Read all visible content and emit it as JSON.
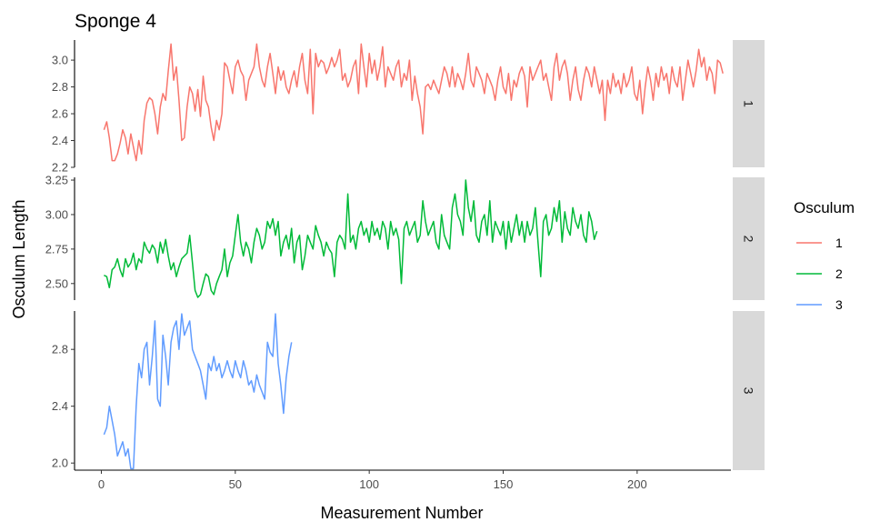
{
  "chart_data": {
    "type": "line",
    "title": "Sponge 4",
    "xlabel": "Measurement Number",
    "ylabel": "Osculum Length",
    "xlim": [
      -10,
      235
    ],
    "x_ticks": [
      0,
      50,
      100,
      150,
      200
    ],
    "legend": {
      "title": "Osculum",
      "placement": "right",
      "entries": [
        "1",
        "2",
        "3"
      ]
    },
    "colors": [
      "#F8766D",
      "#00BA38",
      "#619CFF"
    ],
    "panels": [
      {
        "strip": "1",
        "ylim": [
          2.2,
          3.15
        ],
        "y_ticks": [
          2.2,
          2.4,
          2.6,
          2.8,
          3.0
        ],
        "series": {
          "name": "1",
          "x_start": 1,
          "values": [
            2.48,
            2.54,
            2.42,
            2.25,
            2.25,
            2.3,
            2.38,
            2.48,
            2.42,
            2.3,
            2.45,
            2.35,
            2.25,
            2.4,
            2.3,
            2.55,
            2.68,
            2.72,
            2.7,
            2.6,
            2.45,
            2.65,
            2.75,
            2.7,
            2.92,
            3.12,
            2.85,
            2.95,
            2.7,
            2.4,
            2.42,
            2.65,
            2.8,
            2.75,
            2.62,
            2.78,
            2.58,
            2.88,
            2.7,
            2.65,
            2.5,
            2.4,
            2.55,
            2.48,
            2.6,
            2.98,
            2.95,
            2.85,
            2.75,
            2.95,
            3.0,
            2.92,
            2.88,
            2.7,
            2.85,
            2.9,
            2.95,
            3.12,
            2.95,
            2.85,
            2.8,
            2.95,
            3.05,
            2.9,
            2.75,
            2.95,
            2.85,
            2.92,
            2.8,
            2.75,
            2.85,
            2.92,
            2.8,
            2.95,
            3.05,
            2.85,
            2.75,
            3.08,
            2.6,
            3.05,
            2.95,
            3.0,
            2.98,
            2.9,
            2.95,
            3.02,
            2.95,
            3.0,
            3.08,
            2.85,
            2.9,
            2.8,
            2.85,
            2.95,
            3.0,
            2.75,
            3.12,
            2.95,
            2.8,
            3.05,
            2.9,
            3.0,
            2.85,
            2.95,
            3.1,
            2.8,
            2.95,
            2.9,
            2.85,
            2.95,
            3.0,
            2.8,
            2.9,
            2.85,
            3.0,
            2.7,
            2.88,
            2.75,
            2.65,
            2.45,
            2.8,
            2.82,
            2.78,
            2.85,
            2.8,
            2.75,
            2.85,
            2.95,
            2.9,
            2.8,
            2.95,
            2.8,
            2.9,
            2.85,
            2.78,
            2.9,
            3.05,
            2.85,
            2.8,
            2.95,
            2.9,
            2.85,
            2.75,
            2.9,
            2.85,
            2.8,
            2.7,
            2.85,
            2.95,
            2.8,
            2.75,
            2.9,
            2.7,
            2.85,
            2.8,
            2.9,
            2.95,
            2.88,
            2.65,
            2.95,
            2.85,
            2.9,
            2.95,
            3.0,
            2.85,
            2.9,
            2.8,
            2.7,
            2.95,
            3.05,
            2.85,
            2.95,
            3.0,
            2.9,
            2.7,
            2.85,
            2.95,
            2.78,
            2.7,
            2.85,
            2.95,
            2.9,
            2.8,
            2.95,
            2.85,
            2.75,
            2.85,
            2.55,
            2.85,
            2.75,
            2.9,
            2.8,
            2.85,
            2.75,
            2.9,
            2.8,
            2.85,
            2.95,
            2.75,
            2.7,
            2.85,
            2.6,
            2.8,
            2.95,
            2.85,
            2.7,
            2.9,
            2.8,
            2.95,
            2.85,
            2.9,
            2.75,
            2.95,
            2.85,
            2.8,
            2.95,
            2.7,
            2.85,
            3.0,
            2.9,
            2.8,
            2.92,
            3.08,
            2.95,
            3.02,
            2.85,
            2.95,
            2.9,
            2.75,
            3.0,
            2.98,
            2.9
          ],
          "precision": 2
        }
      },
      {
        "strip": "2",
        "ylim": [
          2.38,
          3.27
        ],
        "y_ticks": [
          2.5,
          2.75,
          3.0,
          3.25
        ],
        "series": {
          "name": "2",
          "x_start": 1,
          "values": [
            2.56,
            2.55,
            2.47,
            2.6,
            2.62,
            2.68,
            2.6,
            2.55,
            2.68,
            2.62,
            2.65,
            2.72,
            2.6,
            2.68,
            2.65,
            2.8,
            2.75,
            2.72,
            2.78,
            2.75,
            2.65,
            2.8,
            2.72,
            2.82,
            2.7,
            2.6,
            2.65,
            2.55,
            2.62,
            2.68,
            2.7,
            2.72,
            2.85,
            2.65,
            2.45,
            2.4,
            2.42,
            2.5,
            2.57,
            2.55,
            2.45,
            2.42,
            2.5,
            2.55,
            2.6,
            2.75,
            2.55,
            2.65,
            2.7,
            2.85,
            3.0,
            2.8,
            2.7,
            2.8,
            2.75,
            2.65,
            2.8,
            2.9,
            2.85,
            2.75,
            2.8,
            2.95,
            2.9,
            2.97,
            2.85,
            2.95,
            2.7,
            2.8,
            2.85,
            2.75,
            2.9,
            2.65,
            2.8,
            2.85,
            2.6,
            2.7,
            2.85,
            2.8,
            2.75,
            2.92,
            2.85,
            2.8,
            2.7,
            2.8,
            2.75,
            2.72,
            2.55,
            2.8,
            2.85,
            2.82,
            2.75,
            3.15,
            2.8,
            2.85,
            2.75,
            2.9,
            2.95,
            2.85,
            2.9,
            2.8,
            2.95,
            2.85,
            2.9,
            2.82,
            2.95,
            2.9,
            2.75,
            2.95,
            2.85,
            2.9,
            2.82,
            2.5,
            2.9,
            2.95,
            2.85,
            2.9,
            2.95,
            2.8,
            2.85,
            3.1,
            2.95,
            2.85,
            2.9,
            2.95,
            2.8,
            2.75,
            3.0,
            2.85,
            2.8,
            2.75,
            3.05,
            3.15,
            3.0,
            2.95,
            2.85,
            3.25,
            3.05,
            2.95,
            3.1,
            2.85,
            2.8,
            2.95,
            3.0,
            2.85,
            3.1,
            2.8,
            2.95,
            2.9,
            2.85,
            2.95,
            2.75,
            2.95,
            2.8,
            2.9,
            3.0,
            2.85,
            2.95,
            2.8,
            2.95,
            2.85,
            2.9,
            3.05,
            2.8,
            2.55,
            2.95,
            3.0,
            2.85,
            2.9,
            3.05,
            2.95,
            3.1,
            2.8,
            3.02,
            2.9,
            2.85,
            3.05,
            2.95,
            2.9,
            3.0,
            2.85,
            2.8,
            3.02,
            2.95,
            2.82,
            2.88
          ],
          "precision": 2
        }
      },
      {
        "strip": "3",
        "ylim": [
          1.95,
          3.07
        ],
        "y_ticks": [
          2.0,
          2.4,
          2.8
        ],
        "series": {
          "name": "3",
          "x_start": 1,
          "values": [
            2.2,
            2.25,
            2.4,
            2.3,
            2.2,
            2.05,
            2.1,
            2.15,
            2.05,
            2.1,
            1.96,
            1.96,
            2.4,
            2.7,
            2.6,
            2.8,
            2.85,
            2.55,
            2.75,
            3.0,
            2.45,
            2.4,
            2.9,
            2.75,
            2.55,
            2.85,
            2.95,
            3.0,
            2.8,
            3.05,
            2.9,
            2.95,
            3.0,
            2.8,
            2.75,
            2.7,
            2.65,
            2.55,
            2.45,
            2.7,
            2.65,
            2.75,
            2.65,
            2.7,
            2.6,
            2.65,
            2.72,
            2.65,
            2.6,
            2.72,
            2.65,
            2.6,
            2.72,
            2.65,
            2.55,
            2.58,
            2.5,
            2.62,
            2.55,
            2.5,
            2.45,
            2.85,
            2.78,
            2.75,
            3.05,
            2.7,
            2.55,
            2.35,
            2.6,
            2.75,
            2.85
          ],
          "precision": 2
        }
      }
    ]
  }
}
